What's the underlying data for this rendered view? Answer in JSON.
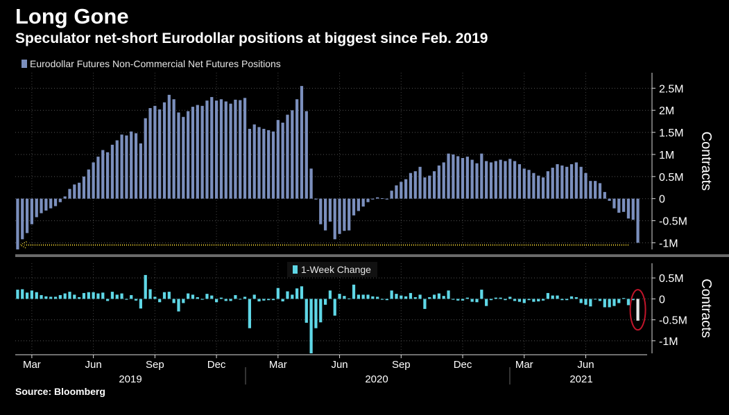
{
  "header": {
    "title": "Long Gone",
    "subtitle": "Speculator net-short Eurodollar positions at biggest since Feb. 2019"
  },
  "footer": {
    "source": "Source: Bloomberg"
  },
  "colors": {
    "background": "#000000",
    "positions_bar": "#7b8fbd",
    "change_bar": "#5fd7e6",
    "arrow": "#ffe033",
    "highlight_ring": "#c0152a",
    "highlight_bar": "#e8e8e8"
  },
  "chart_data": [
    {
      "type": "bar",
      "title": "Eurodollar Futures Non-Commercial Net Futures Positions",
      "ylabel": "Contracts",
      "ylim": [
        -1.15,
        2.85
      ],
      "yticks": [
        2.5,
        2,
        1.5,
        1,
        0.5,
        0,
        -0.5,
        -1
      ],
      "ytick_labels": [
        "2.5M",
        "2M",
        "1.5M",
        "1M",
        "0.5M",
        "0",
        "-0.5M",
        "-1M"
      ],
      "unit_multiplier": 1000000,
      "legend": "Eurodollar Futures Non-Commercial Net Futures Positions",
      "legend_position": "top-left",
      "series": [
        {
          "name": "Eurodollar Futures Non-Commercial Net Futures Positions",
          "values": [
            -1.15,
            -0.92,
            -0.78,
            -0.58,
            -0.42,
            -0.33,
            -0.27,
            -0.22,
            -0.17,
            -0.08,
            0.05,
            0.22,
            0.32,
            0.36,
            0.5,
            0.66,
            0.82,
            0.95,
            1.1,
            1.05,
            1.22,
            1.32,
            1.45,
            1.43,
            1.52,
            1.48,
            1.25,
            1.82,
            2.05,
            2.1,
            2.02,
            2.18,
            2.35,
            2.25,
            1.95,
            1.85,
            1.98,
            2.08,
            2.12,
            2.1,
            2.22,
            2.3,
            2.22,
            2.25,
            2.2,
            2.15,
            2.24,
            2.23,
            2.28,
            1.58,
            1.68,
            1.62,
            1.58,
            1.55,
            1.52,
            1.78,
            1.72,
            1.9,
            2.0,
            2.25,
            2.55,
            1.98,
            0.68,
            -0.02,
            -0.58,
            -0.72,
            -0.52,
            -0.92,
            -0.8,
            -0.73,
            -0.72,
            -0.38,
            -0.28,
            -0.18,
            -0.08,
            -0.02,
            0.03,
            0.01,
            -0.02,
            0.18,
            0.3,
            0.38,
            0.44,
            0.58,
            0.62,
            0.72,
            0.48,
            0.52,
            0.62,
            0.75,
            0.82,
            1.02,
            1.0,
            0.96,
            0.92,
            0.95,
            0.88,
            0.8,
            1.02,
            0.85,
            0.82,
            0.85,
            0.88,
            0.85,
            0.9,
            0.85,
            0.78,
            0.68,
            0.65,
            0.58,
            0.52,
            0.48,
            0.62,
            0.7,
            0.78,
            0.75,
            0.72,
            0.78,
            0.82,
            0.72,
            0.58,
            0.4,
            0.4,
            0.35,
            0.15,
            -0.05,
            -0.22,
            -0.32,
            -0.3,
            -0.45,
            -0.48,
            -1.0
          ]
        }
      ],
      "annotation": {
        "type": "dotted-arrow",
        "from_index": 129,
        "to_index": 0,
        "value": -1.05
      }
    },
    {
      "type": "bar",
      "title": "1-Week Change",
      "ylabel": "Contracts",
      "ylim": [
        -1.3,
        0.85
      ],
      "yticks": [
        0.5,
        0,
        -0.5,
        -1
      ],
      "ytick_labels": [
        "0.5M",
        "0",
        "-0.5M",
        "-1M"
      ],
      "unit_multiplier": 1000000,
      "legend": "1-Week Change",
      "legend_position": "top-center",
      "series": [
        {
          "name": "1-Week Change",
          "values": [
            0.22,
            0.23,
            0.15,
            0.2,
            0.16,
            0.09,
            0.06,
            0.05,
            0.05,
            0.09,
            0.13,
            0.17,
            0.1,
            0.04,
            0.14,
            0.16,
            0.16,
            0.13,
            0.15,
            -0.05,
            0.17,
            0.1,
            0.13,
            -0.02,
            0.09,
            -0.04,
            -0.23,
            0.57,
            0.23,
            0.05,
            -0.08,
            0.16,
            0.17,
            -0.1,
            -0.3,
            -0.1,
            0.13,
            0.1,
            0.04,
            -0.02,
            0.12,
            0.08,
            -0.08,
            0.03,
            -0.05,
            -0.05,
            0.09,
            -0.01,
            0.05,
            -0.7,
            0.1,
            -0.06,
            -0.04,
            -0.03,
            -0.03,
            0.26,
            -0.06,
            0.18,
            0.1,
            0.25,
            0.3,
            -0.57,
            -1.3,
            -0.7,
            -0.56,
            -0.14,
            0.2,
            -0.4,
            0.12,
            0.07,
            0.01,
            0.34,
            0.1,
            0.1,
            0.1,
            0.06,
            0.05,
            -0.02,
            -0.03,
            0.2,
            0.12,
            0.08,
            0.06,
            0.14,
            0.04,
            0.1,
            -0.24,
            0.04,
            0.1,
            0.13,
            0.07,
            0.2,
            -0.02,
            -0.04,
            -0.04,
            0.03,
            -0.07,
            -0.08,
            0.22,
            -0.17,
            -0.03,
            0.03,
            0.03,
            -0.03,
            0.05,
            -0.05,
            -0.07,
            -0.1,
            -0.03,
            -0.07,
            -0.06,
            -0.04,
            0.14,
            0.08,
            0.08,
            -0.03,
            -0.03,
            0.06,
            0.04,
            -0.1,
            -0.14,
            -0.18,
            0.0,
            -0.05,
            -0.2,
            -0.2,
            -0.17,
            -0.1,
            0.02,
            -0.15,
            -0.03,
            -0.52
          ]
        }
      ]
    }
  ],
  "x_axis": {
    "month_labels": [
      {
        "label": "Mar",
        "index": 3
      },
      {
        "label": "Jun",
        "index": 16
      },
      {
        "label": "Sep",
        "index": 29
      },
      {
        "label": "Dec",
        "index": 42
      },
      {
        "label": "Mar",
        "index": 55
      },
      {
        "label": "Jun",
        "index": 68
      },
      {
        "label": "Sep",
        "index": 81
      },
      {
        "label": "Dec",
        "index": 94
      },
      {
        "label": "Mar",
        "index": 107
      },
      {
        "label": "Jun",
        "index": 120
      }
    ],
    "year_labels": [
      "2019",
      "2020",
      "2021"
    ]
  }
}
